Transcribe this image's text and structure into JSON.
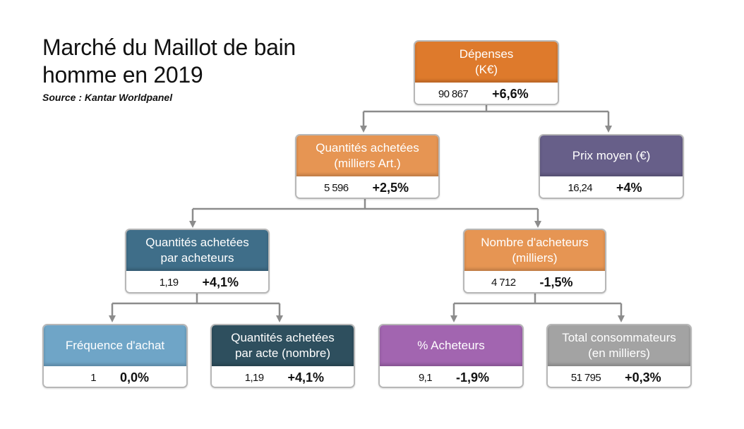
{
  "header": {
    "title_line1": "Marché du Maillot de bain",
    "title_line2": "homme en 2019",
    "source": "Source : Kantar Worldpanel"
  },
  "colors": {
    "orange_dark": "#de7a2c",
    "orange_light": "#e69553",
    "purple_slate": "#675f89",
    "teal_blue": "#3f6e89",
    "light_blue": "#6fa5c7",
    "dark_teal": "#2e4f5e",
    "violet": "#a265b0",
    "grey": "#a3a3a3",
    "connector": "#8c8c8c"
  },
  "nodes": {
    "depenses": {
      "line1": "Dépenses",
      "line2": "(K€)",
      "value": "90 867",
      "change": "+6,6%"
    },
    "quantites": {
      "line1": "Quantités achetées",
      "line2": "(milliers Art.)",
      "value": "5 596",
      "change": "+2,5%"
    },
    "prix": {
      "line1": "Prix moyen (€)",
      "line2": "",
      "value": "16,24",
      "change": "+4%"
    },
    "qte_par_acheteur": {
      "line1": "Quantités achetées",
      "line2": "par acheteurs",
      "value": "1,19",
      "change": "+4,1%"
    },
    "nb_acheteurs": {
      "line1": "Nombre d'acheteurs",
      "line2": "(milliers)",
      "value": "4 712",
      "change": "-1,5%"
    },
    "frequence": {
      "line1": "Fréquence d'achat",
      "line2": "",
      "value": "1",
      "change": "0,0%"
    },
    "qte_par_acte": {
      "line1": "Quantités achetées",
      "line2": "par acte (nombre)",
      "value": "1,19",
      "change": "+4,1%"
    },
    "pct_acheteurs": {
      "line1": "% Acheteurs",
      "line2": "",
      "value": "9,1",
      "change": "-1,9%"
    },
    "total_conso": {
      "line1": "Total consommateurs",
      "line2": "(en milliers)",
      "value": "51 795",
      "change": "+0,3%"
    }
  }
}
